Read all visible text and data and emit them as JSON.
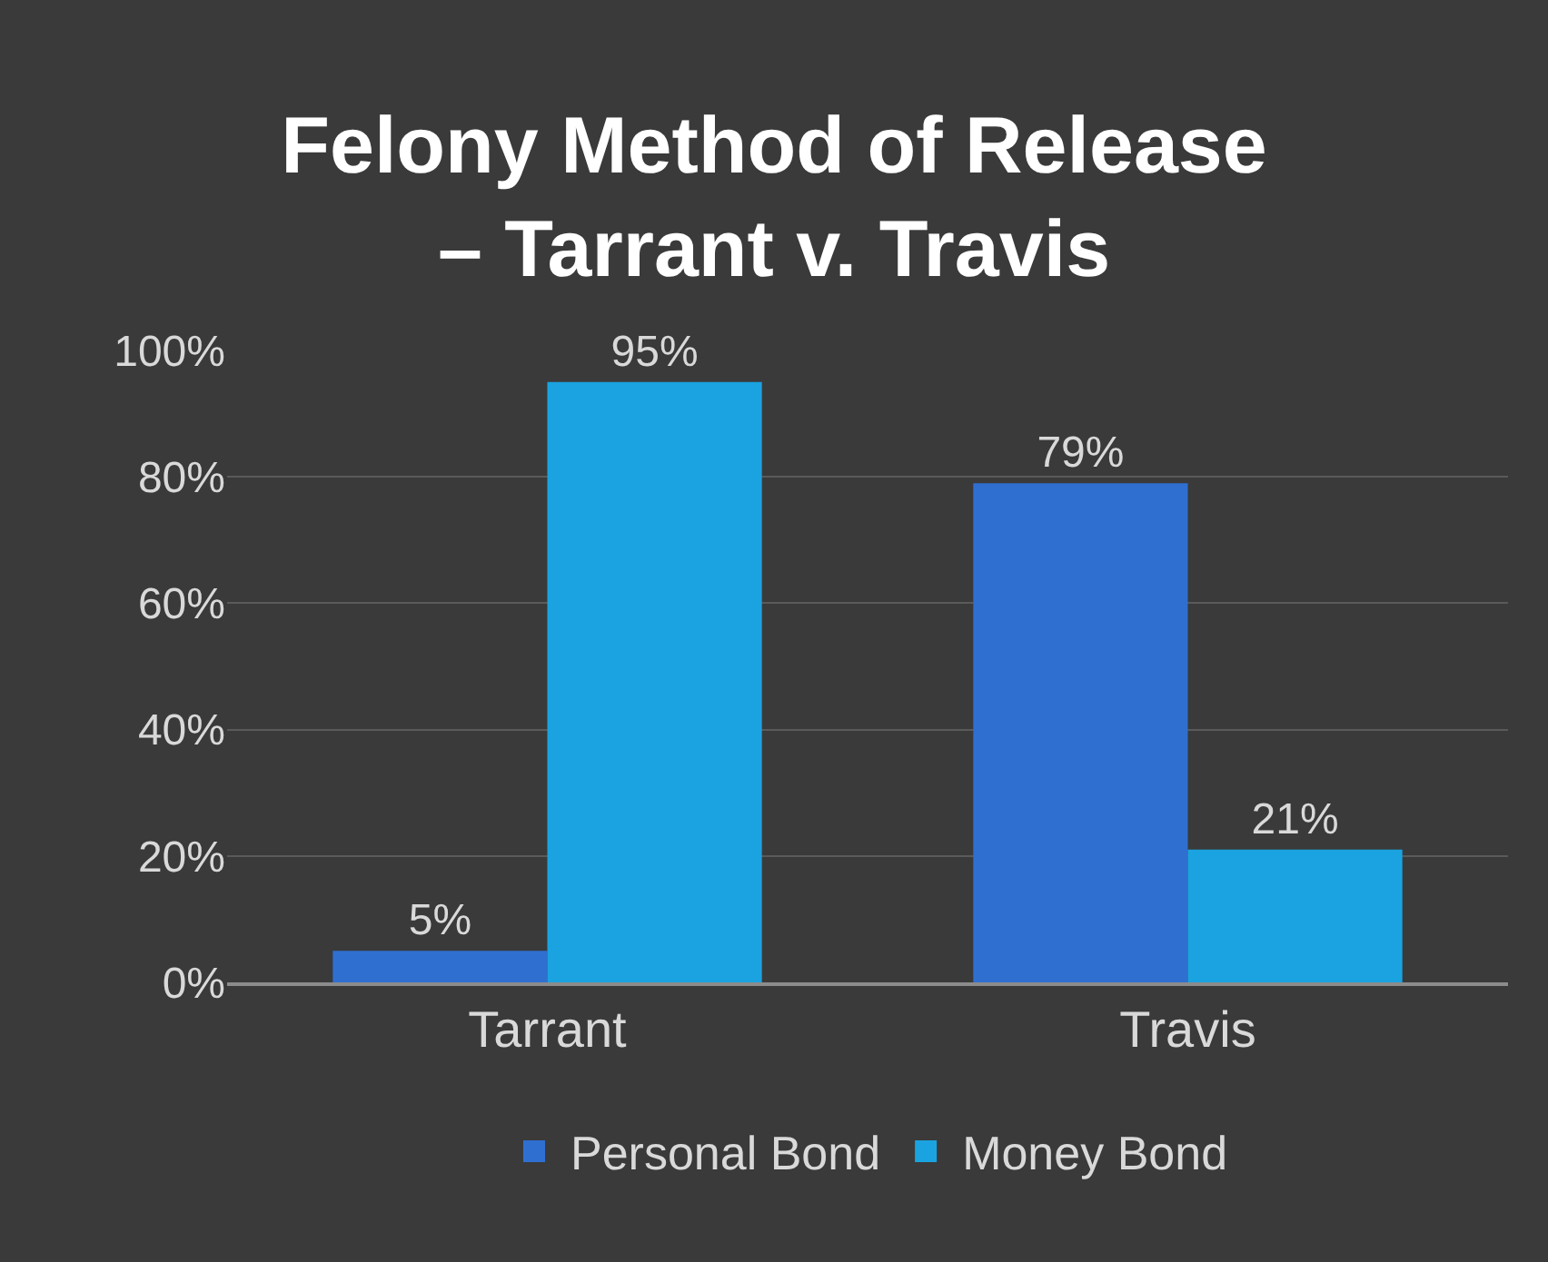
{
  "chart_data": {
    "type": "bar",
    "title": "Felony Method of Release\n– Tarrant v. Travis",
    "categories": [
      "Tarrant",
      "Travis"
    ],
    "series": [
      {
        "name": "Personal Bond",
        "color": "#2f6fd0",
        "values": [
          5,
          79
        ],
        "value_labels": [
          "5%",
          "79%"
        ]
      },
      {
        "name": "Money Bond",
        "color": "#1aa3e0",
        "values": [
          95,
          21
        ],
        "value_labels": [
          "95%",
          "21%"
        ]
      }
    ],
    "ylim": [
      0,
      100
    ],
    "yticks": [
      {
        "value": 0,
        "label": "0%"
      },
      {
        "value": 20,
        "label": "20%"
      },
      {
        "value": 40,
        "label": "40%"
      },
      {
        "value": 60,
        "label": "60%"
      },
      {
        "value": 80,
        "label": "80%"
      },
      {
        "value": 100,
        "label": "100%"
      }
    ],
    "grid": "y",
    "legend": "bottom"
  }
}
